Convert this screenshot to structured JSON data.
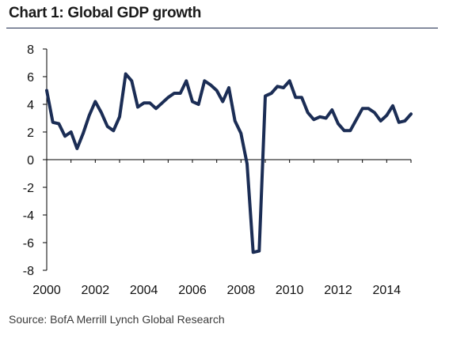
{
  "title": "Chart 1: Global GDP growth",
  "source": "Source: BofA Merrill Lynch Global Research",
  "colors": {
    "line": "#1b2d55",
    "rule": "#1f2d4e",
    "axis": "#000000"
  },
  "chart_data": {
    "type": "line",
    "title": "Chart 1: Global GDP growth",
    "xlabel": "",
    "ylabel": "",
    "xlim": [
      2000,
      2015
    ],
    "ylim": [
      -8,
      8
    ],
    "grid": false,
    "xticks": [
      2000,
      2002,
      2004,
      2006,
      2008,
      2010,
      2012,
      2014
    ],
    "yticks": [
      8,
      6,
      4,
      2,
      0,
      -2,
      -4,
      -6,
      -8
    ],
    "series": [
      {
        "x": [
          2000.0,
          2000.25,
          2000.5,
          2000.75,
          2001.0,
          2001.25,
          2001.5,
          2001.75,
          2002.0,
          2002.25,
          2002.5,
          2002.75,
          2003.0,
          2003.25,
          2003.5,
          2003.75,
          2004.0,
          2004.25,
          2004.5,
          2004.75,
          2005.0,
          2005.25,
          2005.5,
          2005.75,
          2006.0,
          2006.25,
          2006.5,
          2006.75,
          2007.0,
          2007.25,
          2007.5,
          2007.75,
          2008.0,
          2008.25,
          2008.5,
          2008.75,
          2009.0,
          2009.25,
          2009.5,
          2009.75,
          2010.0,
          2010.25,
          2010.5,
          2010.75,
          2011.0,
          2011.25,
          2011.5,
          2011.75,
          2012.0,
          2012.25,
          2012.5,
          2012.75,
          2013.0,
          2013.25,
          2013.5,
          2013.75,
          2014.0,
          2014.25,
          2014.5,
          2014.75,
          2015.0
        ],
        "values": [
          5.0,
          2.7,
          2.6,
          1.7,
          2.0,
          0.8,
          1.9,
          3.2,
          4.2,
          3.4,
          2.4,
          2.1,
          3.1,
          6.2,
          5.7,
          3.8,
          4.1,
          4.1,
          3.7,
          4.1,
          4.5,
          4.8,
          4.8,
          5.7,
          4.2,
          4.0,
          5.7,
          5.4,
          5.0,
          4.2,
          5.2,
          2.8,
          1.9,
          -0.3,
          -6.7,
          -6.6,
          4.6,
          4.8,
          5.3,
          5.2,
          5.7,
          4.5,
          4.5,
          3.4,
          2.9,
          3.1,
          3.0,
          3.6,
          2.6,
          2.1,
          2.1,
          2.9,
          3.7,
          3.7,
          3.4,
          2.8,
          3.2,
          3.9,
          2.7,
          2.8,
          3.3
        ]
      }
    ]
  }
}
